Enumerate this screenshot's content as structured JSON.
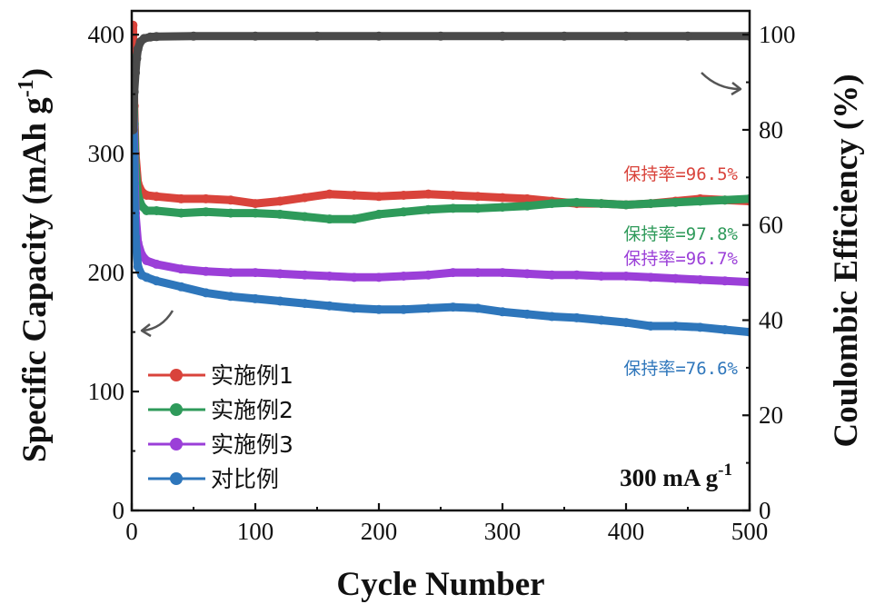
{
  "chart_data": {
    "type": "line",
    "xlabel": "Cycle Number",
    "ylabel": "Specific Capacity (mAh g",
    "ylabel_sup": "-1",
    "ylabel_close": ")",
    "y2label": "Coulombic Efficiency (%)",
    "xlim": [
      0,
      500
    ],
    "ylim": [
      0,
      420
    ],
    "y2lim": [
      0,
      105
    ],
    "xticks": [
      0,
      100,
      200,
      300,
      400,
      500
    ],
    "yticks": [
      0,
      100,
      200,
      300,
      400
    ],
    "y2ticks": [
      0,
      20,
      40,
      60,
      80,
      100
    ],
    "condition": "300 mA g",
    "condition_sup": "-1",
    "legend_position": "bottom-left",
    "series": [
      {
        "name": "实施例1",
        "color": "#d9433b",
        "x": [
          1,
          2,
          3,
          5,
          8,
          12,
          20,
          40,
          60,
          80,
          100,
          120,
          140,
          160,
          180,
          200,
          220,
          240,
          260,
          280,
          300,
          320,
          340,
          360,
          380,
          400,
          420,
          440,
          460,
          480,
          500
        ],
        "y": [
          408,
          340,
          300,
          275,
          268,
          265,
          264,
          262,
          262,
          261,
          258,
          260,
          263,
          266,
          265,
          264,
          265,
          266,
          265,
          264,
          263,
          262,
          260,
          258,
          258,
          257,
          258,
          260,
          262,
          261,
          260
        ]
      },
      {
        "name": "实施例2",
        "color": "#2e9a5a",
        "x": [
          1,
          2,
          3,
          5,
          8,
          12,
          20,
          40,
          60,
          80,
          100,
          120,
          140,
          160,
          180,
          200,
          220,
          240,
          260,
          280,
          300,
          320,
          340,
          360,
          380,
          400,
          420,
          440,
          460,
          480,
          500
        ],
        "y": [
          380,
          325,
          290,
          265,
          256,
          252,
          252,
          250,
          251,
          250,
          250,
          249,
          247,
          245,
          245,
          249,
          251,
          253,
          254,
          254,
          255,
          256,
          258,
          259,
          258,
          257,
          258,
          259,
          260,
          261,
          262
        ]
      },
      {
        "name": "实施例3",
        "color": "#9b3fd8",
        "x": [
          1,
          2,
          3,
          5,
          8,
          12,
          20,
          40,
          60,
          80,
          100,
          120,
          140,
          160,
          180,
          200,
          220,
          240,
          260,
          280,
          300,
          320,
          340,
          360,
          380,
          400,
          420,
          440,
          460,
          480,
          500
        ],
        "y": [
          360,
          300,
          250,
          225,
          215,
          210,
          207,
          203,
          201,
          200,
          200,
          199,
          198,
          197,
          196,
          196,
          197,
          198,
          200,
          200,
          200,
          199,
          198,
          198,
          197,
          197,
          196,
          195,
          194,
          193,
          192
        ]
      },
      {
        "name": "对比例",
        "color": "#2e76bb",
        "x": [
          1,
          2,
          3,
          5,
          8,
          12,
          20,
          40,
          60,
          80,
          100,
          120,
          140,
          160,
          180,
          200,
          220,
          240,
          260,
          280,
          300,
          320,
          340,
          360,
          380,
          400,
          420,
          440,
          460,
          480,
          500
        ],
        "y": [
          340,
          275,
          230,
          205,
          198,
          196,
          193,
          188,
          183,
          180,
          178,
          176,
          174,
          172,
          170,
          169,
          169,
          170,
          171,
          170,
          167,
          165,
          163,
          162,
          160,
          158,
          155,
          155,
          154,
          152,
          150
        ]
      },
      {
        "name": "",
        "axis": "right",
        "color": "#4a4a4a",
        "x": [
          1,
          2,
          3,
          4,
          5,
          7,
          10,
          15,
          20,
          50,
          100,
          150,
          200,
          250,
          300,
          350,
          400,
          450,
          500
        ],
        "y": [
          80,
          88,
          92,
          95,
          97,
          98.5,
          99.2,
          99.5,
          99.6,
          99.7,
          99.7,
          99.7,
          99.7,
          99.7,
          99.7,
          99.7,
          99.7,
          99.7,
          99.7
        ]
      }
    ],
    "annotations": [
      {
        "text": "保持率=96.5%",
        "color": "#d9433b"
      },
      {
        "text": "保持率=97.8%",
        "color": "#2e9a5a"
      },
      {
        "text": "保持率=96.7%",
        "color": "#9b3fd8"
      },
      {
        "text": "保持率=76.6%",
        "color": "#2e76bb"
      }
    ]
  }
}
